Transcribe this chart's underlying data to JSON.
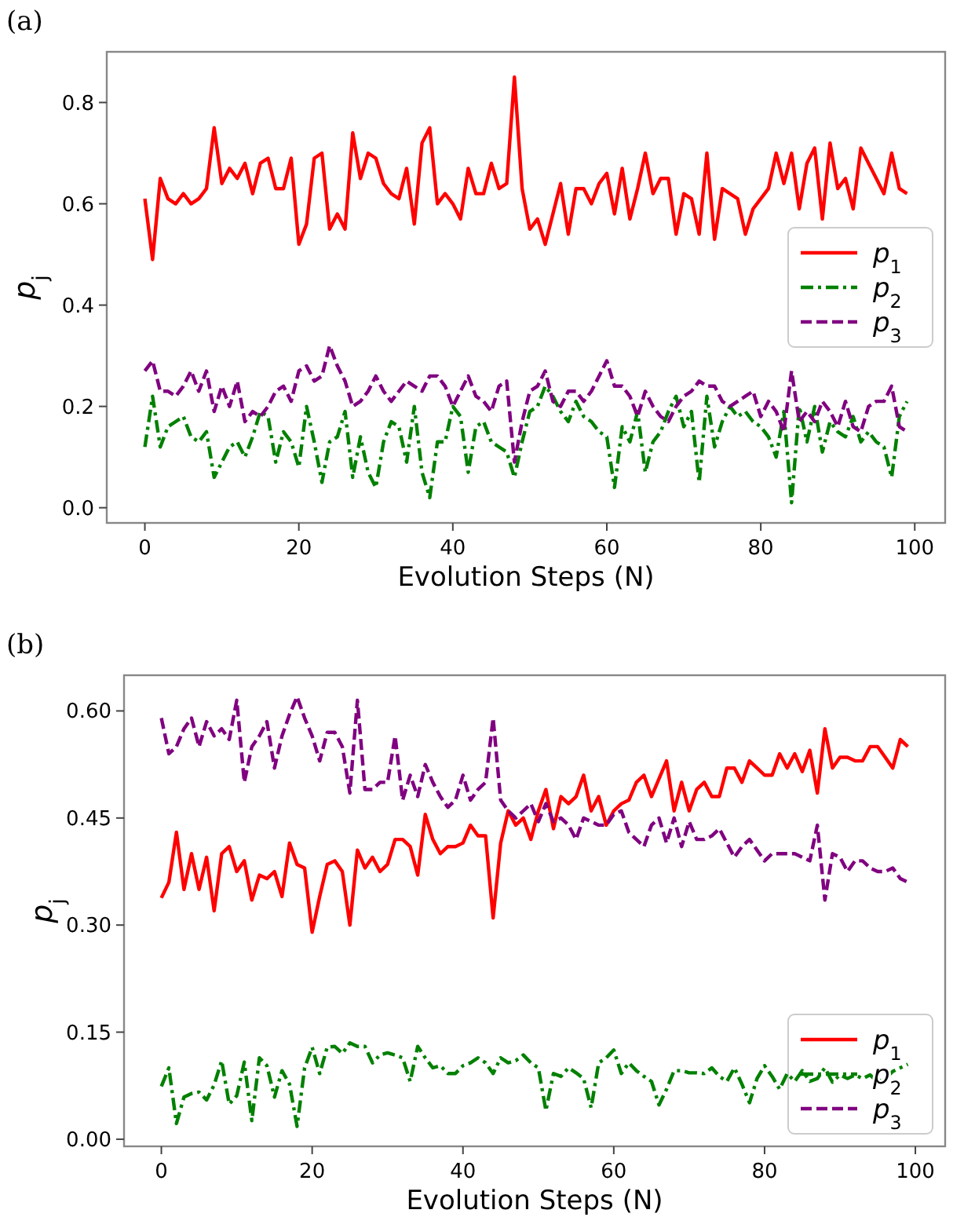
{
  "chart_data": [
    {
      "type": "line",
      "title": "(a)",
      "xlabel": "Evolution Steps (N)",
      "ylabel": "p$_{j}$",
      "x": [
        0,
        1,
        2,
        3,
        4,
        5,
        6,
        7,
        8,
        9,
        10,
        11,
        12,
        13,
        14,
        15,
        16,
        17,
        18,
        19,
        20,
        21,
        22,
        23,
        24,
        25,
        26,
        27,
        28,
        29,
        30,
        31,
        32,
        33,
        34,
        35,
        36,
        37,
        38,
        39,
        40,
        41,
        42,
        43,
        44,
        45,
        46,
        47,
        48,
        49,
        50,
        51,
        52,
        53,
        54,
        55,
        56,
        57,
        58,
        59,
        60,
        61,
        62,
        63,
        64,
        65,
        66,
        67,
        68,
        69,
        70,
        71,
        72,
        73,
        74,
        75,
        76,
        77,
        78,
        79,
        80,
        81,
        82,
        83,
        84,
        85,
        86,
        87,
        88,
        89,
        90,
        91,
        92,
        93,
        94,
        95,
        96,
        97,
        98,
        99
      ],
      "xlim": [
        -4.95,
        103.95
      ],
      "xticks": [
        0,
        20,
        40,
        60,
        80,
        100
      ],
      "ylim": [
        -0.03,
        0.9
      ],
      "yticks": [
        {
          "value": 0,
          "label": "0.0"
        },
        {
          "value": 0.2,
          "label": "0.2"
        },
        {
          "value": 0.4,
          "label": "0.4"
        },
        {
          "value": 0.6,
          "label": "0.6"
        },
        {
          "value": 0.8,
          "label": "0.8"
        }
      ],
      "legend": "right",
      "grid": false,
      "series": [
        {
          "name": "p$_{1}$",
          "color": "#ff0000",
          "line_style": "solid",
          "values": [
            0.61,
            0.49,
            0.65,
            0.61,
            0.6,
            0.62,
            0.6,
            0.61,
            0.63,
            0.75,
            0.64,
            0.67,
            0.65,
            0.68,
            0.62,
            0.68,
            0.69,
            0.63,
            0.63,
            0.69,
            0.52,
            0.56,
            0.69,
            0.7,
            0.55,
            0.58,
            0.55,
            0.74,
            0.65,
            0.7,
            0.69,
            0.64,
            0.62,
            0.61,
            0.67,
            0.56,
            0.72,
            0.75,
            0.6,
            0.62,
            0.6,
            0.57,
            0.67,
            0.62,
            0.62,
            0.68,
            0.63,
            0.64,
            0.85,
            0.63,
            0.55,
            0.57,
            0.52,
            0.58,
            0.64,
            0.54,
            0.63,
            0.63,
            0.6,
            0.64,
            0.66,
            0.58,
            0.67,
            0.57,
            0.63,
            0.7,
            0.62,
            0.65,
            0.65,
            0.54,
            0.62,
            0.61,
            0.54,
            0.7,
            0.53,
            0.63,
            0.62,
            0.61,
            0.54,
            0.59,
            0.61,
            0.63,
            0.7,
            0.64,
            0.7,
            0.59,
            0.68,
            0.71,
            0.57,
            0.72,
            0.63,
            0.65,
            0.59,
            0.71,
            0.68,
            0.65,
            0.62,
            0.7,
            0.63,
            0.62
          ]
        },
        {
          "name": "p$_{2}$",
          "color": "#008000",
          "line_style": "dashdot",
          "values": [
            0.12,
            0.22,
            0.12,
            0.16,
            0.17,
            0.18,
            0.14,
            0.13,
            0.15,
            0.06,
            0.09,
            0.12,
            0.13,
            0.1,
            0.14,
            0.19,
            0.18,
            0.09,
            0.15,
            0.13,
            0.08,
            0.2,
            0.13,
            0.05,
            0.13,
            0.14,
            0.19,
            0.06,
            0.14,
            0.07,
            0.04,
            0.13,
            0.17,
            0.16,
            0.09,
            0.2,
            0.07,
            0.02,
            0.13,
            0.13,
            0.2,
            0.18,
            0.07,
            0.16,
            0.17,
            0.13,
            0.12,
            0.11,
            0.06,
            0.13,
            0.19,
            0.2,
            0.24,
            0.22,
            0.19,
            0.17,
            0.21,
            0.18,
            0.17,
            0.15,
            0.14,
            0.04,
            0.16,
            0.13,
            0.19,
            0.07,
            0.13,
            0.15,
            0.19,
            0.22,
            0.16,
            0.19,
            0.05,
            0.22,
            0.12,
            0.17,
            0.2,
            0.18,
            0.19,
            0.17,
            0.16,
            0.14,
            0.1,
            0.19,
            0.01,
            0.2,
            0.13,
            0.2,
            0.11,
            0.17,
            0.15,
            0.14,
            0.18,
            0.13,
            0.15,
            0.13,
            0.12,
            0.06,
            0.18,
            0.21
          ]
        },
        {
          "name": "p$_{3}$",
          "color": "#800080",
          "line_style": "dashed",
          "values": [
            0.27,
            0.29,
            0.23,
            0.23,
            0.22,
            0.24,
            0.27,
            0.23,
            0.27,
            0.19,
            0.24,
            0.2,
            0.25,
            0.17,
            0.19,
            0.18,
            0.2,
            0.23,
            0.24,
            0.21,
            0.27,
            0.28,
            0.25,
            0.26,
            0.32,
            0.28,
            0.25,
            0.2,
            0.21,
            0.23,
            0.26,
            0.23,
            0.21,
            0.23,
            0.25,
            0.24,
            0.23,
            0.26,
            0.26,
            0.24,
            0.2,
            0.23,
            0.26,
            0.22,
            0.21,
            0.19,
            0.24,
            0.25,
            0.09,
            0.17,
            0.23,
            0.24,
            0.27,
            0.21,
            0.2,
            0.23,
            0.23,
            0.21,
            0.23,
            0.26,
            0.29,
            0.24,
            0.24,
            0.22,
            0.18,
            0.23,
            0.2,
            0.18,
            0.17,
            0.2,
            0.22,
            0.23,
            0.25,
            0.24,
            0.24,
            0.21,
            0.2,
            0.21,
            0.22,
            0.23,
            0.18,
            0.21,
            0.19,
            0.15,
            0.27,
            0.17,
            0.19,
            0.17,
            0.21,
            0.19,
            0.16,
            0.21,
            0.16,
            0.15,
            0.2,
            0.21,
            0.21,
            0.24,
            0.16,
            0.15
          ]
        }
      ]
    },
    {
      "type": "line",
      "title": "(b)",
      "xlabel": "Evolution Steps (N)",
      "ylabel": "p$_{j}$",
      "x": [
        0,
        1,
        2,
        3,
        4,
        5,
        6,
        7,
        8,
        9,
        10,
        11,
        12,
        13,
        14,
        15,
        16,
        17,
        18,
        19,
        20,
        21,
        22,
        23,
        24,
        25,
        26,
        27,
        28,
        29,
        30,
        31,
        32,
        33,
        34,
        35,
        36,
        37,
        38,
        39,
        40,
        41,
        42,
        43,
        44,
        45,
        46,
        47,
        48,
        49,
        50,
        51,
        52,
        53,
        54,
        55,
        56,
        57,
        58,
        59,
        60,
        61,
        62,
        63,
        64,
        65,
        66,
        67,
        68,
        69,
        70,
        71,
        72,
        73,
        74,
        75,
        76,
        77,
        78,
        79,
        80,
        81,
        82,
        83,
        84,
        85,
        86,
        87,
        88,
        89,
        90,
        91,
        92,
        93,
        94,
        95,
        96,
        97,
        98,
        99
      ],
      "xlim": [
        -4.95,
        103.95
      ],
      "xticks": [
        0,
        20,
        40,
        60,
        80,
        100
      ],
      "ylim": [
        -0.01,
        0.65
      ],
      "yticks": [
        {
          "value": 0,
          "label": "0.00"
        },
        {
          "value": 0.15,
          "label": "0.15"
        },
        {
          "value": 0.3,
          "label": "0.30"
        },
        {
          "value": 0.45,
          "label": "0.45"
        },
        {
          "value": 0.6,
          "label": "0.60"
        }
      ],
      "legend": "bottom right",
      "grid": false,
      "series": [
        {
          "name": "p$_{1}$",
          "color": "#ff0000",
          "line_style": "solid",
          "values": [
            0.338,
            0.36,
            0.43,
            0.35,
            0.4,
            0.35,
            0.395,
            0.32,
            0.4,
            0.41,
            0.375,
            0.39,
            0.335,
            0.37,
            0.365,
            0.375,
            0.34,
            0.415,
            0.385,
            0.38,
            0.29,
            0.34,
            0.385,
            0.39,
            0.375,
            0.3,
            0.405,
            0.38,
            0.395,
            0.375,
            0.385,
            0.42,
            0.42,
            0.41,
            0.37,
            0.455,
            0.42,
            0.4,
            0.41,
            0.41,
            0.415,
            0.44,
            0.425,
            0.425,
            0.31,
            0.415,
            0.46,
            0.44,
            0.45,
            0.42,
            0.46,
            0.49,
            0.435,
            0.48,
            0.47,
            0.48,
            0.51,
            0.46,
            0.48,
            0.44,
            0.46,
            0.47,
            0.475,
            0.5,
            0.51,
            0.48,
            0.505,
            0.53,
            0.46,
            0.5,
            0.46,
            0.49,
            0.5,
            0.48,
            0.48,
            0.52,
            0.52,
            0.5,
            0.53,
            0.52,
            0.51,
            0.51,
            0.54,
            0.52,
            0.54,
            0.515,
            0.545,
            0.485,
            0.575,
            0.52,
            0.535,
            0.535,
            0.53,
            0.53,
            0.55,
            0.55,
            0.535,
            0.52,
            0.56,
            0.55
          ]
        },
        {
          "name": "p$_{2}$",
          "color": "#008000",
          "line_style": "dashdot",
          "values": [
            0.074,
            0.1,
            0.022,
            0.059,
            0.064,
            0.066,
            0.055,
            0.076,
            0.11,
            0.049,
            0.061,
            0.108,
            0.026,
            0.114,
            0.103,
            0.059,
            0.096,
            0.077,
            0.018,
            0.1,
            0.129,
            0.092,
            0.129,
            0.13,
            0.12,
            0.135,
            0.13,
            0.13,
            0.107,
            0.118,
            0.121,
            0.118,
            0.114,
            0.081,
            0.13,
            0.114,
            0.1,
            0.103,
            0.092,
            0.092,
            0.103,
            0.107,
            0.114,
            0.107,
            0.092,
            0.114,
            0.107,
            0.11,
            0.118,
            0.107,
            0.1,
            0.04,
            0.092,
            0.088,
            0.1,
            0.093,
            0.085,
            0.044,
            0.107,
            0.114,
            0.125,
            0.092,
            0.107,
            0.096,
            0.088,
            0.081,
            0.048,
            0.07,
            0.096,
            0.096,
            0.093,
            0.093,
            0.092,
            0.1,
            0.088,
            0.081,
            0.1,
            0.077,
            0.051,
            0.085,
            0.103,
            0.088,
            0.07,
            0.092,
            0.081,
            0.096,
            0.081,
            0.085,
            0.1,
            0.08,
            0.09,
            0.085,
            0.09,
            0.085,
            0.09,
            0.08,
            0.085,
            0.095,
            0.1,
            0.105
          ]
        },
        {
          "name": "p$_{3}$",
          "color": "#800080",
          "line_style": "dashed",
          "values": [
            0.59,
            0.54,
            0.55,
            0.575,
            0.59,
            0.55,
            0.585,
            0.565,
            0.575,
            0.56,
            0.615,
            0.5,
            0.55,
            0.565,
            0.585,
            0.52,
            0.565,
            0.595,
            0.62,
            0.59,
            0.565,
            0.53,
            0.57,
            0.57,
            0.55,
            0.485,
            0.615,
            0.49,
            0.49,
            0.5,
            0.5,
            0.565,
            0.475,
            0.51,
            0.48,
            0.525,
            0.5,
            0.48,
            0.465,
            0.475,
            0.51,
            0.475,
            0.49,
            0.5,
            0.59,
            0.475,
            0.46,
            0.45,
            0.46,
            0.47,
            0.445,
            0.47,
            0.445,
            0.45,
            0.44,
            0.42,
            0.45,
            0.445,
            0.44,
            0.44,
            0.455,
            0.46,
            0.43,
            0.42,
            0.41,
            0.44,
            0.45,
            0.415,
            0.45,
            0.41,
            0.445,
            0.42,
            0.42,
            0.425,
            0.435,
            0.415,
            0.395,
            0.41,
            0.42,
            0.405,
            0.39,
            0.4,
            0.4,
            0.4,
            0.4,
            0.395,
            0.39,
            0.44,
            0.335,
            0.4,
            0.395,
            0.375,
            0.39,
            0.39,
            0.38,
            0.375,
            0.375,
            0.38,
            0.365,
            0.36
          ]
        }
      ]
    }
  ]
}
